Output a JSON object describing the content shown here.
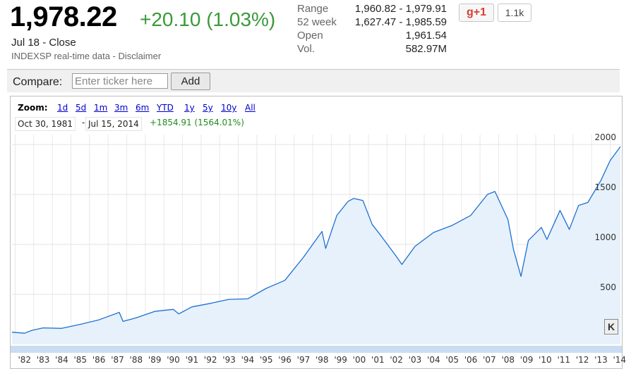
{
  "quote": {
    "price": "1,978.22",
    "change": "+20.10 (1.03%)",
    "close_label": "Jul 18 - Close",
    "source": "INDEXSP real-time data - Disclaimer"
  },
  "stats": [
    {
      "label": "Range",
      "value": "1,960.82 - 1,979.91"
    },
    {
      "label": "52 week",
      "value": "1,627.47 - 1,985.59"
    },
    {
      "label": "Open",
      "value": "1,961.54"
    },
    {
      "label": "Vol.",
      "value": "582.97M"
    }
  ],
  "social": {
    "gplus_label": "g+1",
    "count": "1.1k"
  },
  "compare": {
    "label": "Compare:",
    "placeholder": "Enter ticker here",
    "add_label": "Add"
  },
  "zoom": {
    "label": "Zoom:",
    "options": [
      "1d",
      "5d",
      "1m",
      "3m",
      "6m",
      "YTD",
      "1y",
      "5y",
      "10y",
      "All"
    ]
  },
  "range": {
    "from": "Oct 30, 1981",
    "dash": "-",
    "to": "Jul 15, 2014",
    "change": "+1854.91 (1564.01%)"
  },
  "k_button": "K",
  "colors": {
    "line": "#1f6fcf",
    "fill": "#e6f1fb",
    "change_up": "#3a9a3a"
  },
  "chart_data": {
    "type": "area",
    "title": "",
    "xlabel": "",
    "ylabel": "",
    "ylim": [
      0,
      2100
    ],
    "xlim": [
      1981.83,
      2014.55
    ],
    "grid": true,
    "y_ticks": [
      500,
      1000,
      1500,
      2000
    ],
    "x_tick_labels": [
      "'82",
      "'83",
      "'84",
      "'85",
      "'86",
      "'87",
      "'88",
      "'89",
      "'90",
      "'91",
      "'92",
      "'93",
      "'94",
      "'95",
      "'96",
      "'97",
      "'98",
      "'99",
      "'00",
      "'01",
      "'02",
      "'03",
      "'04",
      "'05",
      "'06",
      "'07",
      "'08",
      "'09",
      "'10",
      "'11",
      "'12",
      "'13",
      "'14"
    ],
    "x": [
      1981.83,
      1982.5,
      1982.9,
      1983.5,
      1984.5,
      1985.5,
      1986.5,
      1987.6,
      1987.8,
      1988.5,
      1989.5,
      1990.5,
      1990.8,
      1991.5,
      1992.5,
      1993.5,
      1994.5,
      1995.5,
      1996.5,
      1997.5,
      1998.5,
      1998.7,
      1999.3,
      1999.9,
      2000.2,
      2000.7,
      2001.2,
      2001.7,
      2002.5,
      2002.8,
      2003.5,
      2004.5,
      2005.5,
      2006.5,
      2007.4,
      2007.8,
      2008.5,
      2008.8,
      2009.2,
      2009.6,
      2010.3,
      2010.6,
      2011.3,
      2011.8,
      2012.3,
      2012.8,
      2013.5,
      2014.0,
      2014.55
    ],
    "y": [
      122,
      111,
      140,
      165,
      160,
      200,
      245,
      320,
      230,
      265,
      330,
      350,
      305,
      375,
      410,
      450,
      455,
      560,
      640,
      870,
      1130,
      960,
      1290,
      1430,
      1460,
      1440,
      1200,
      1080,
      880,
      800,
      980,
      1120,
      1190,
      1290,
      1500,
      1530,
      1250,
      950,
      680,
      1040,
      1170,
      1050,
      1340,
      1150,
      1390,
      1420,
      1640,
      1840,
      1978
    ]
  }
}
